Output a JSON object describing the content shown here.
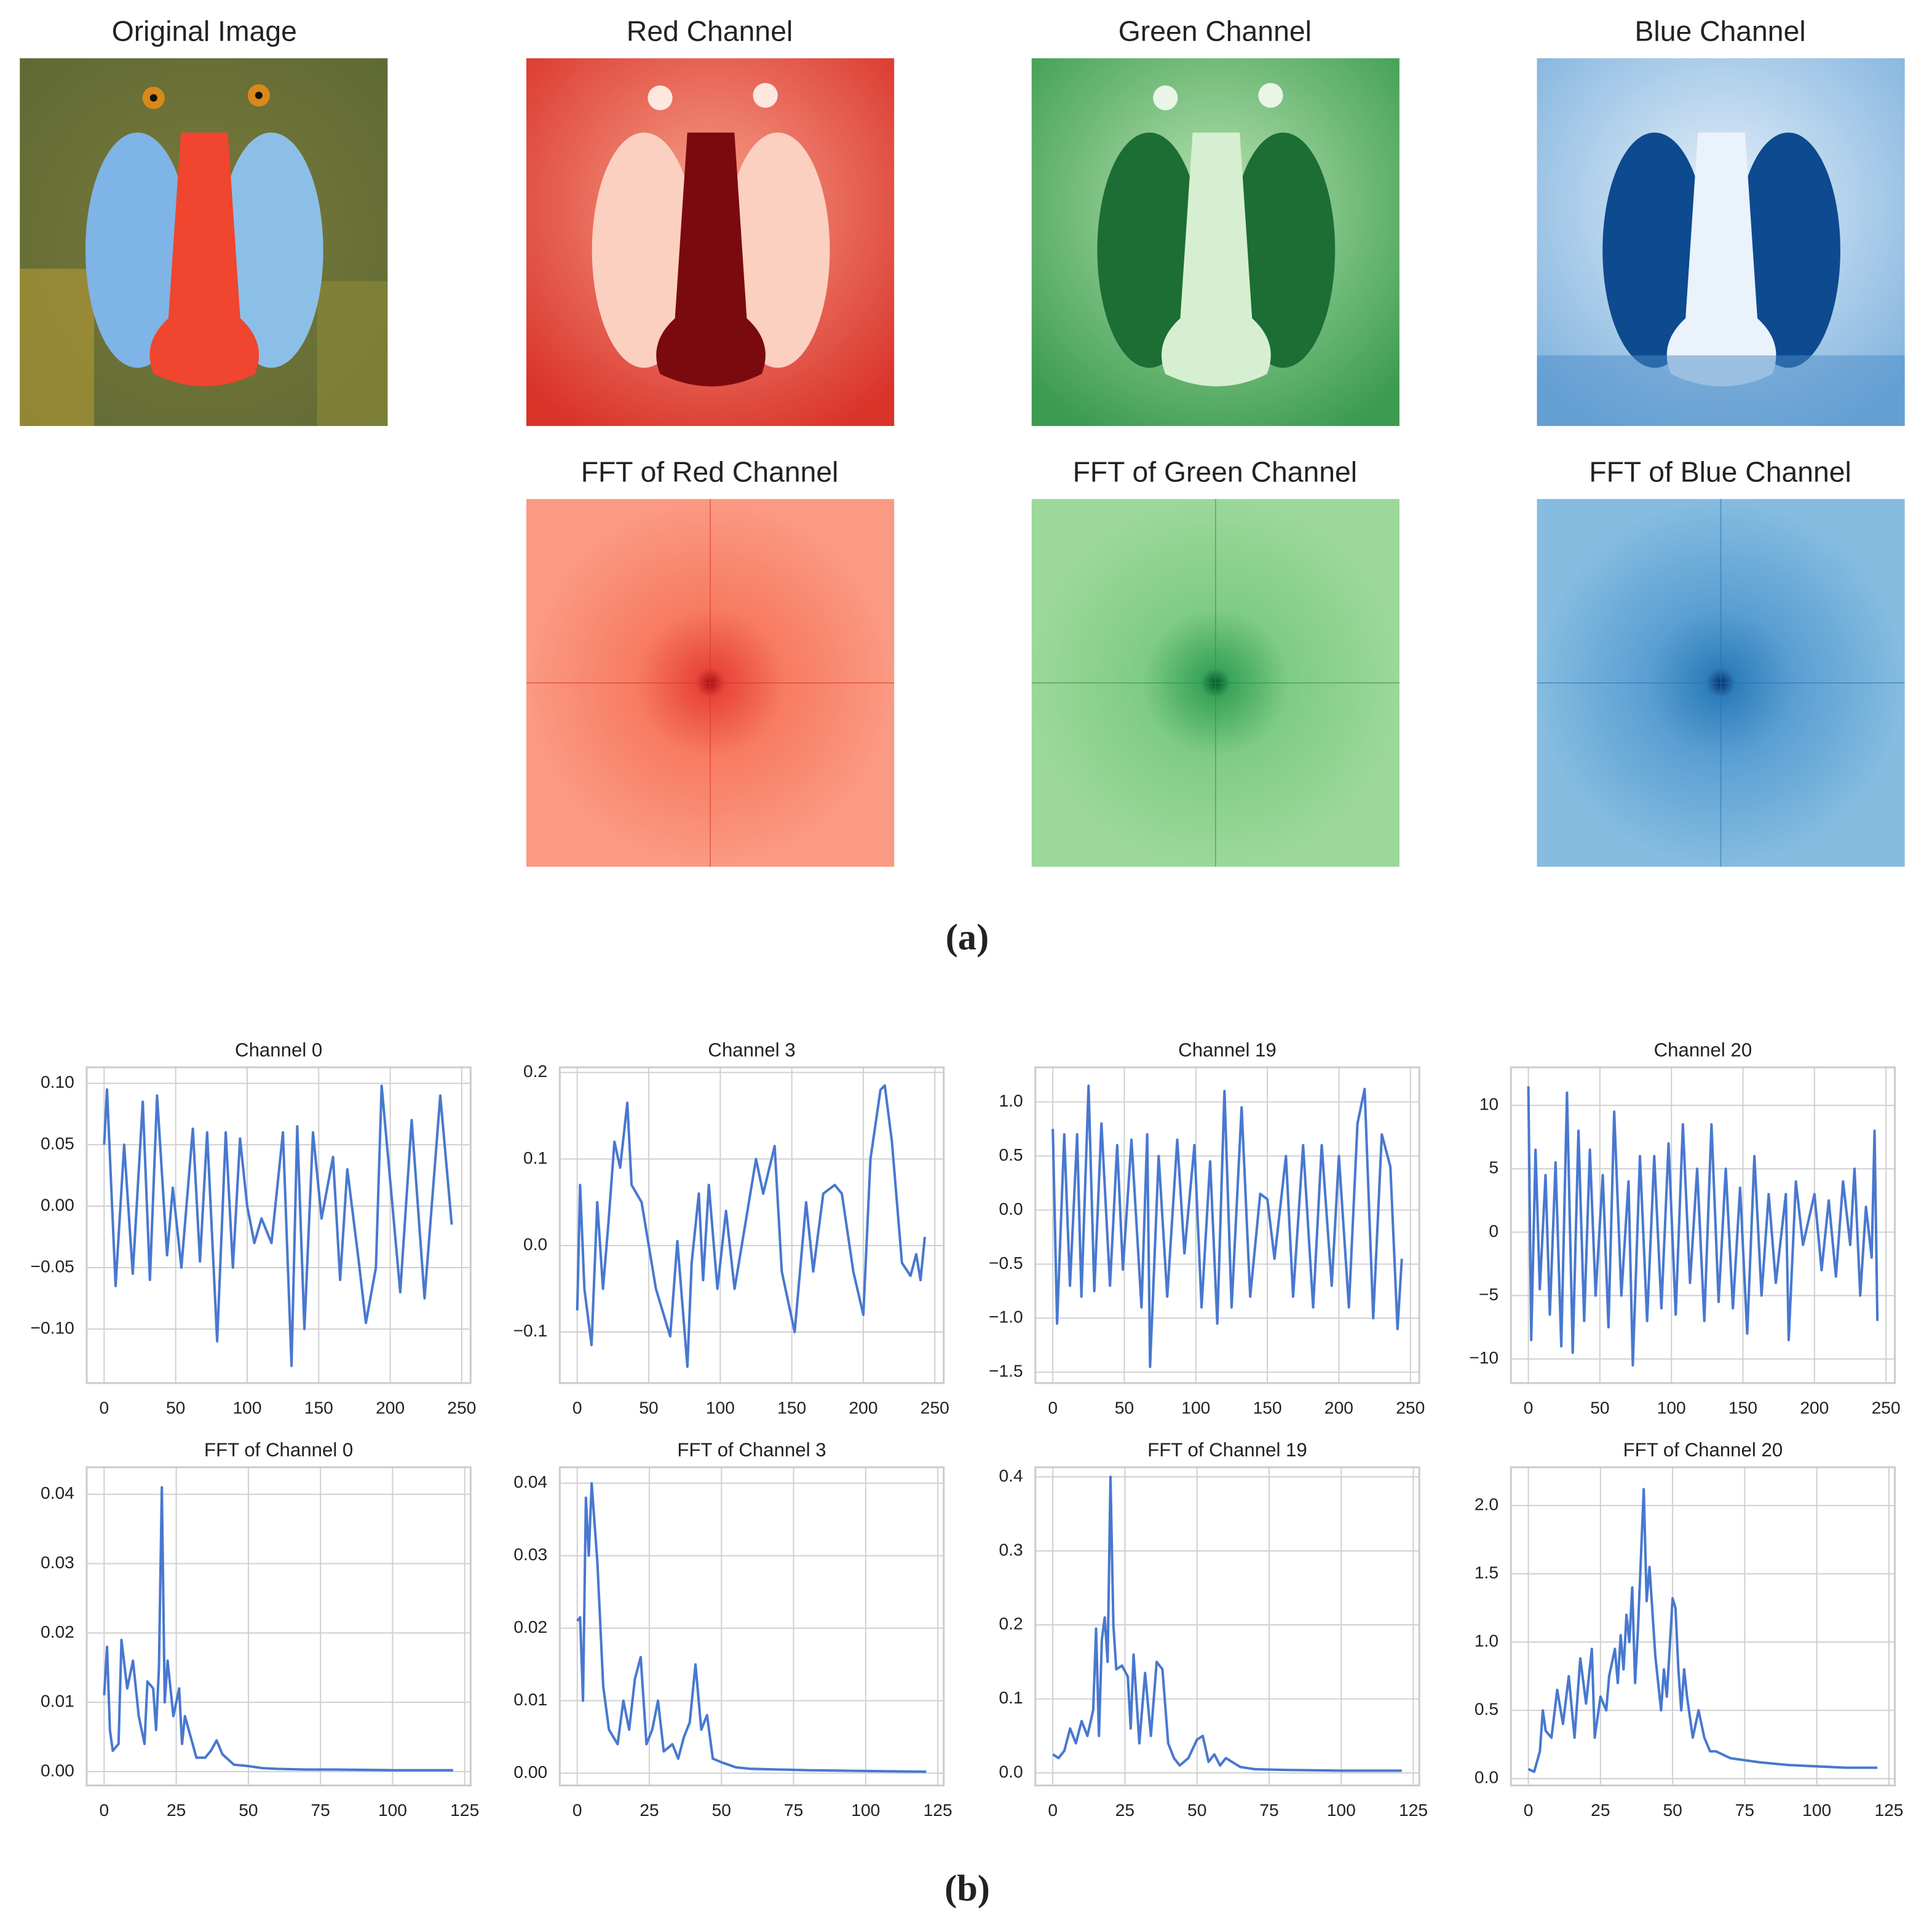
{
  "images": {
    "titles": [
      "Original Image",
      "Red Channel",
      "Green Channel",
      "Blue Channel",
      "FFT of Red Channel",
      "FFT of Green Channel",
      "FFT of Blue Channel"
    ]
  },
  "captions": [
    "(a)",
    "(b)"
  ],
  "chart_data": [
    {
      "type": "line",
      "title": "Channel 0",
      "color": "#4878d0",
      "grid": true,
      "xlim": [
        -12.2,
        256.2
      ],
      "xticks": [
        0,
        50,
        100,
        150,
        200,
        250
      ],
      "ylim": [
        -0.144,
        0.113
      ],
      "yticks": [
        {
          "value": -0.1,
          "label": "−0.10"
        },
        {
          "value": -0.05,
          "label": "−0.05"
        },
        {
          "value": 0,
          "label": "0.00"
        },
        0.05,
        {
          "value": 0.1,
          "label": "0.10"
        }
      ],
      "x": [
        0,
        2,
        8,
        14,
        20,
        27,
        32,
        37,
        44,
        48,
        54,
        62,
        67,
        72,
        79,
        85,
        90,
        95,
        100,
        105,
        110,
        117,
        125,
        131,
        135,
        140,
        146,
        152,
        160,
        165,
        170,
        178,
        183,
        190,
        194,
        207,
        215,
        224,
        235,
        243
      ],
      "values": [
        0.05,
        0.095,
        -0.065,
        0.05,
        -0.055,
        0.085,
        -0.06,
        0.09,
        -0.04,
        0.015,
        -0.05,
        0.063,
        -0.045,
        0.06,
        -0.11,
        0.06,
        -0.05,
        0.055,
        0.0,
        -0.03,
        -0.01,
        -0.03,
        0.06,
        -0.13,
        0.065,
        -0.1,
        0.06,
        -0.01,
        0.04,
        -0.06,
        0.03,
        -0.045,
        -0.095,
        -0.05,
        0.098,
        -0.07,
        0.07,
        -0.075,
        0.09,
        -0.015
      ]
    },
    {
      "type": "line",
      "title": "Channel 3",
      "color": "#4878d0",
      "grid": true,
      "xlim": [
        -12.2,
        256.2
      ],
      "xticks": [
        0,
        50,
        100,
        150,
        200,
        250
      ],
      "ylim": [
        -0.159,
        0.206
      ],
      "yticks": [
        {
          "value": -0.1,
          "label": "−0.1"
        },
        {
          "value": 0,
          "label": "0.0"
        },
        0.1,
        0.2
      ],
      "x": [
        0,
        2,
        5,
        10,
        14,
        18,
        22,
        26,
        30,
        35,
        38,
        45,
        55,
        65,
        70,
        77,
        80,
        85,
        88,
        92,
        98,
        104,
        110,
        117,
        125,
        130,
        138,
        143,
        152,
        160,
        165,
        172,
        180,
        185,
        193,
        200,
        205,
        212,
        215,
        220,
        227,
        233,
        237,
        240,
        243
      ],
      "values": [
        -0.075,
        0.07,
        -0.05,
        -0.115,
        0.05,
        -0.05,
        0.03,
        0.12,
        0.09,
        0.165,
        0.07,
        0.05,
        -0.05,
        -0.105,
        0.005,
        -0.14,
        -0.02,
        0.06,
        -0.04,
        0.07,
        -0.05,
        0.04,
        -0.05,
        0.02,
        0.1,
        0.06,
        0.115,
        -0.03,
        -0.1,
        0.05,
        -0.03,
        0.06,
        0.07,
        0.06,
        -0.03,
        -0.08,
        0.1,
        0.18,
        0.185,
        0.12,
        -0.02,
        -0.035,
        -0.01,
        -0.04,
        0.01
      ]
    },
    {
      "type": "line",
      "title": "Channel 19",
      "color": "#4878d0",
      "grid": true,
      "xlim": [
        -12.2,
        256.2
      ],
      "xticks": [
        0,
        50,
        100,
        150,
        200,
        250
      ],
      "ylim": [
        -1.6,
        1.32
      ],
      "yticks": [
        {
          "value": -1.5,
          "label": "−1.5"
        },
        {
          "value": -1,
          "label": "−1.0"
        },
        {
          "value": -0.5,
          "label": "−0.5"
        },
        {
          "value": 0,
          "label": "0.0"
        },
        0.5,
        {
          "value": 1,
          "label": "1.0"
        }
      ],
      "x": [
        0,
        3,
        8,
        12,
        17,
        20,
        25,
        29,
        34,
        40,
        45,
        49,
        55,
        62,
        66,
        68,
        74,
        80,
        87,
        92,
        99,
        104,
        110,
        115,
        120,
        125,
        132,
        138,
        145,
        150,
        155,
        163,
        168,
        175,
        182,
        188,
        195,
        200,
        207,
        213,
        218,
        224,
        230,
        236,
        241,
        244
      ],
      "values": [
        0.75,
        -1.05,
        0.7,
        -0.7,
        0.7,
        -0.8,
        1.15,
        -0.75,
        0.8,
        -0.7,
        0.6,
        -0.55,
        0.65,
        -0.9,
        0.7,
        -1.45,
        0.5,
        -0.8,
        0.65,
        -0.4,
        0.6,
        -0.9,
        0.45,
        -1.05,
        1.1,
        -0.9,
        0.95,
        -0.8,
        0.15,
        0.1,
        -0.45,
        0.5,
        -0.8,
        0.6,
        -0.9,
        0.6,
        -0.7,
        0.5,
        -0.9,
        0.8,
        1.12,
        -1.0,
        0.7,
        0.4,
        -1.1,
        -0.45
      ]
    },
    {
      "type": "line",
      "title": "Channel 20",
      "color": "#4878d0",
      "grid": true,
      "xlim": [
        -12.2,
        256.2
      ],
      "xticks": [
        0,
        50,
        100,
        150,
        200,
        250
      ],
      "ylim": [
        -11.9,
        13.0
      ],
      "yticks": [
        {
          "value": -10,
          "label": "−10"
        },
        {
          "value": -5,
          "label": "−5"
        },
        0,
        5,
        10
      ],
      "x": [
        0,
        2,
        5,
        8,
        12,
        15,
        19,
        23,
        27,
        31,
        35,
        39,
        43,
        47,
        52,
        56,
        60,
        65,
        70,
        73,
        78,
        83,
        88,
        93,
        98,
        103,
        108,
        113,
        118,
        123,
        128,
        133,
        138,
        143,
        148,
        153,
        158,
        163,
        168,
        173,
        180,
        182,
        187,
        192,
        200,
        205,
        210,
        215,
        220,
        225,
        228,
        232,
        236,
        240,
        242,
        244
      ],
      "values": [
        11.5,
        -8.5,
        6.5,
        -4.5,
        4.5,
        -6.5,
        5.5,
        -9,
        11,
        -9.5,
        8,
        -7,
        6.5,
        -5,
        4.5,
        -7.5,
        9.5,
        -5,
        4,
        -10.5,
        6,
        -7,
        6,
        -6,
        7,
        -6.5,
        8.5,
        -4,
        5,
        -7,
        8.5,
        -5.5,
        5,
        -6,
        3.5,
        -8,
        6,
        -5,
        3,
        -4,
        3,
        -8.5,
        4,
        -1,
        3,
        -3,
        2.5,
        -3.5,
        4,
        -1,
        5,
        -5,
        2,
        -2,
        8,
        -7
      ]
    },
    {
      "type": "line",
      "title": "FFT of Channel 0",
      "color": "#4878d0",
      "grid": true,
      "xlim": [
        -6.05,
        127.05
      ],
      "xticks": [
        0,
        25,
        50,
        75,
        100,
        125
      ],
      "ylim": [
        -0.002,
        0.0439
      ],
      "yticks": [
        {
          "value": 0,
          "label": "0.00"
        },
        0.01,
        0.02,
        0.03,
        0.04
      ],
      "x": [
        0,
        1,
        2,
        3,
        5,
        6,
        8,
        10,
        12,
        14,
        15,
        17,
        18,
        19,
        20,
        21,
        22,
        24,
        26,
        27,
        28,
        30,
        32,
        35,
        37,
        39,
        41,
        45,
        50,
        55,
        60,
        70,
        80,
        100,
        121
      ],
      "values": [
        0.011,
        0.018,
        0.006,
        0.003,
        0.004,
        0.019,
        0.012,
        0.016,
        0.008,
        0.004,
        0.013,
        0.012,
        0.006,
        0.015,
        0.041,
        0.01,
        0.016,
        0.008,
        0.012,
        0.004,
        0.008,
        0.005,
        0.002,
        0.002,
        0.003,
        0.0045,
        0.0025,
        0.001,
        0.0008,
        0.0005,
        0.0004,
        0.0003,
        0.0003,
        0.0002,
        0.0002
      ]
    },
    {
      "type": "line",
      "title": "FFT of Channel 3",
      "color": "#4878d0",
      "grid": true,
      "xlim": [
        -6.05,
        127.05
      ],
      "xticks": [
        0,
        25,
        50,
        75,
        100,
        125
      ],
      "ylim": [
        -0.0017,
        0.0422
      ],
      "yticks": [
        {
          "value": 0,
          "label": "0.00"
        },
        0.01,
        0.02,
        0.03,
        0.04
      ],
      "x": [
        0,
        1,
        2,
        3,
        4,
        5,
        7,
        9,
        11,
        14,
        16,
        18,
        20,
        22,
        24,
        26,
        28,
        30,
        33,
        35,
        37,
        39,
        41,
        43,
        45,
        47,
        50,
        55,
        60,
        70,
        80,
        100,
        121
      ],
      "values": [
        0.021,
        0.0215,
        0.01,
        0.038,
        0.03,
        0.04,
        0.029,
        0.012,
        0.006,
        0.004,
        0.01,
        0.006,
        0.013,
        0.016,
        0.004,
        0.006,
        0.01,
        0.003,
        0.004,
        0.002,
        0.005,
        0.007,
        0.015,
        0.006,
        0.008,
        0.002,
        0.0015,
        0.0008,
        0.0006,
        0.0005,
        0.0004,
        0.0003,
        0.0002
      ]
    },
    {
      "type": "line",
      "title": "FFT of Channel 19",
      "color": "#4878d0",
      "grid": true,
      "xlim": [
        -6.05,
        127.05
      ],
      "xticks": [
        0,
        25,
        50,
        75,
        100,
        125
      ],
      "ylim": [
        -0.017,
        0.413
      ],
      "yticks": [
        {
          "value": 0,
          "label": "0.0"
        },
        0.1,
        0.2,
        0.3,
        0.4
      ],
      "x": [
        0,
        2,
        4,
        6,
        8,
        10,
        12,
        14,
        15,
        16,
        17,
        18,
        19,
        20,
        21,
        22,
        24,
        26,
        27,
        28,
        30,
        32,
        34,
        36,
        38,
        40,
        42,
        44,
        47,
        50,
        52,
        54,
        56,
        58,
        60,
        65,
        70,
        80,
        100,
        121
      ],
      "values": [
        0.025,
        0.02,
        0.03,
        0.06,
        0.04,
        0.07,
        0.05,
        0.085,
        0.195,
        0.05,
        0.18,
        0.21,
        0.15,
        0.4,
        0.2,
        0.14,
        0.145,
        0.13,
        0.06,
        0.16,
        0.04,
        0.135,
        0.05,
        0.15,
        0.14,
        0.04,
        0.02,
        0.01,
        0.02,
        0.045,
        0.05,
        0.015,
        0.025,
        0.01,
        0.02,
        0.008,
        0.005,
        0.004,
        0.003,
        0.003
      ]
    },
    {
      "type": "line",
      "title": "FFT of Channel 20",
      "color": "#4878d0",
      "grid": true,
      "xlim": [
        -6.05,
        127.05
      ],
      "xticks": [
        0,
        25,
        50,
        75,
        100,
        125
      ],
      "ylim": [
        -0.05,
        2.28
      ],
      "yticks": [
        {
          "value": 0,
          "label": "0.0"
        },
        0.5,
        {
          "value": 1,
          "label": "1.0"
        },
        1.5,
        {
          "value": 2,
          "label": "2.0"
        }
      ],
      "x": [
        0,
        2,
        4,
        5,
        6,
        8,
        10,
        12,
        14,
        16,
        18,
        20,
        22,
        23,
        25,
        27,
        28,
        30,
        31,
        32,
        33,
        34,
        35,
        36,
        37,
        38,
        40,
        41,
        42,
        44,
        46,
        47,
        48,
        50,
        51,
        52,
        53,
        54,
        55,
        57,
        59,
        61,
        63,
        65,
        70,
        80,
        90,
        100,
        110,
        121
      ],
      "values": [
        0.07,
        0.05,
        0.2,
        0.5,
        0.35,
        0.3,
        0.65,
        0.4,
        0.75,
        0.3,
        0.88,
        0.55,
        0.95,
        0.3,
        0.6,
        0.5,
        0.75,
        0.95,
        0.7,
        1.05,
        0.8,
        1.2,
        1.0,
        1.4,
        0.7,
        1.1,
        2.12,
        1.3,
        1.55,
        0.9,
        0.5,
        0.8,
        0.6,
        1.32,
        1.25,
        0.8,
        0.5,
        0.8,
        0.6,
        0.3,
        0.5,
        0.3,
        0.2,
        0.2,
        0.15,
        0.12,
        0.1,
        0.09,
        0.08,
        0.08
      ]
    }
  ]
}
